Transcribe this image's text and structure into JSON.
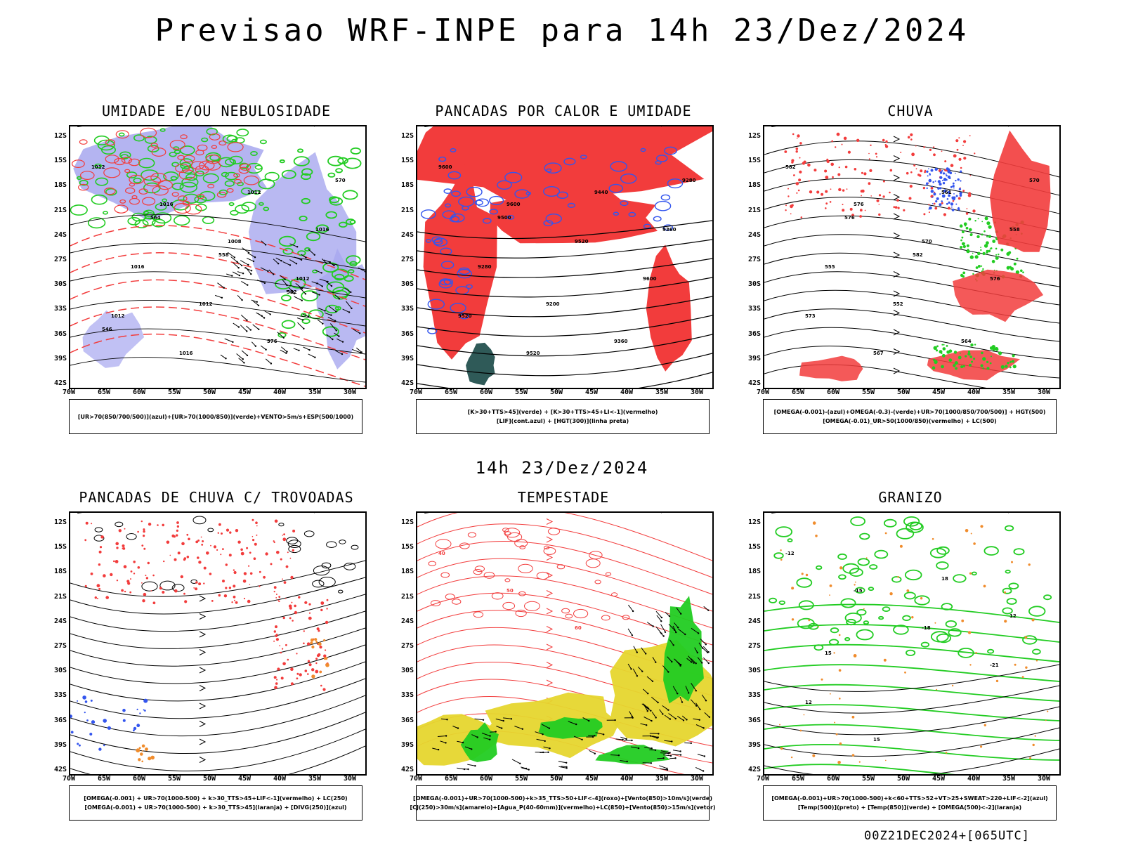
{
  "header": {
    "title": "Previsao WRF-INPE  para 14h 23/Dez/2024",
    "mid_date": "14h 23/Dez/2024",
    "run_id": "00Z21DEC2024+[065UTC]"
  },
  "axes": {
    "lat_labels": [
      "12S",
      "15S",
      "18S",
      "21S",
      "24S",
      "27S",
      "30S",
      "33S",
      "36S",
      "39S",
      "42S"
    ],
    "lon_labels": [
      "70W",
      "65W",
      "60W",
      "55W",
      "50W",
      "45W",
      "40W",
      "35W",
      "30W"
    ]
  },
  "colors": {
    "red": "#f23c3c",
    "green": "#22cc22",
    "blue": "#3355ee",
    "lavender": "#a7a7ef",
    "yellow": "#e6d62e",
    "orange": "#f08c2c",
    "darkteal": "#2f5a58"
  },
  "panels": [
    {
      "title": "UMIDADE E/OU NEBULOSIDADE",
      "legend": [
        "[UR>70(850/700/500)](azul)+[UR>70(1000/850)](verde)+VENTO>5m/s+ESP(500/1000)"
      ],
      "contour_labels": [
        "1012",
        "1016",
        "1008",
        "1012",
        "1012",
        "1016",
        "1012",
        "1016",
        "1016",
        "1012",
        "576",
        "570",
        "564",
        "558",
        "552",
        "546"
      ]
    },
    {
      "title": "PANCADAS POR CALOR E UMIDADE",
      "legend": [
        "[K>30+TTS>45](verde) + [K>30+TTS>45+LI<-1](vermelho)",
        "[LIF](cont.azul) + [HGT(300)](linha preta)"
      ],
      "contour_labels": [
        "9600",
        "9600",
        "9520",
        "9600",
        "9520",
        "9520",
        "9440",
        "9360",
        "9280",
        "9200",
        "9360",
        "9280",
        "9500"
      ]
    },
    {
      "title": "CHUVA",
      "legend": [
        "[OMEGA(-0.001)-(azul)+OMEGA(-0.3)-(verde)+UR>70(1000/850/700/500)] + HGT(500)",
        "[OMEGA(-0.01)_UR>50(1000/850)(vermelho) + LC(500)"
      ],
      "contour_labels": [
        "582",
        "576",
        "570",
        "576",
        "573",
        "567",
        "561",
        "558",
        "555",
        "552",
        "564",
        "570",
        "576",
        "582"
      ]
    },
    {
      "title": "PANCADAS DE CHUVA C/ TROVOADAS",
      "legend": [
        "[OMEGA(-0.001) + UR>70(1000-500) + k>30_TTS>45+LIF<-1](vermelho) + LC(250)",
        "[OMEGA(-0.001) + UR>70(1000-500) + k>30_TTS>45](laranja) + [DIVG(250)](azul)"
      ],
      "contour_labels": []
    },
    {
      "title": "TEMPESTADE",
      "legend": [
        "[OMEGA(-0.001)+UR>70(1000-500)+k>35_TTS>50+LIF<-4](roxo)+[Vento(850)>10m/s](verde)",
        "[CJ(250)>30m/s](amarelo)+[Agua_P(40-60mm)](vermelho)+LC(850)+[Vento(850)>15m/s](vetor)"
      ],
      "contour_labels": [
        "40",
        "50",
        "60"
      ]
    },
    {
      "title": "GRANIZO",
      "legend": [
        "[OMEGA(-0.001)+UR>70(1000-500)+k<60+TTS>52+VT>25+SWEAT>220+LIF<-2](azul)",
        "[Temp(500)](preto) + [Temp(850)](verde) + [OMEGA(500)<-2](laranja)"
      ],
      "contour_labels": [
        "-12",
        "-15",
        "-18",
        "-21",
        "12",
        "15",
        "18",
        "12",
        "15"
      ]
    }
  ]
}
